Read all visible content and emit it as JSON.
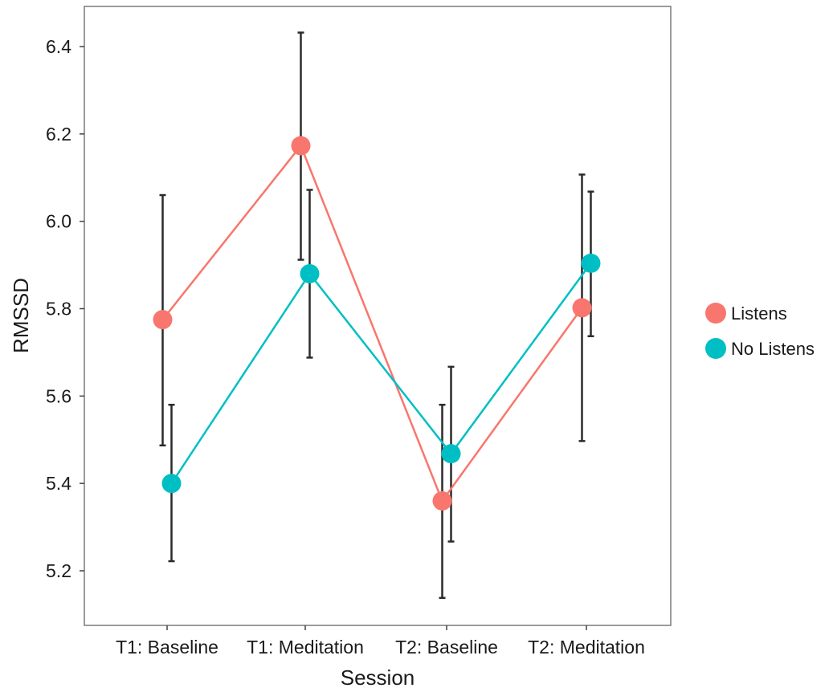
{
  "chart_data": {
    "type": "line",
    "title": "",
    "xlabel": "Session",
    "ylabel": "RMSSD",
    "categories": [
      "T1: Baseline",
      "T1: Meditation",
      "T2: Baseline",
      "T2: Meditation"
    ],
    "ylim": [
      5.1,
      6.52
    ],
    "yticks": [
      "5.2",
      "5.4",
      "5.6",
      "5.8",
      "6.0",
      "6.2",
      "6.4"
    ],
    "grid": false,
    "legend_position": "right",
    "series": [
      {
        "name": "Listens",
        "color": "#f8766d",
        "values": [
          5.775,
          6.173,
          5.36,
          5.802
        ],
        "error_low": [
          5.487,
          5.912,
          5.138,
          5.497
        ],
        "error_high": [
          6.06,
          6.432,
          5.58,
          6.107
        ]
      },
      {
        "name": "No Listens",
        "color": "#00bfc4",
        "values": [
          5.4,
          5.88,
          5.468,
          5.904
        ],
        "error_low": [
          5.222,
          5.688,
          5.267,
          5.737
        ],
        "error_high": [
          5.58,
          6.072,
          5.667,
          6.068
        ]
      }
    ]
  }
}
